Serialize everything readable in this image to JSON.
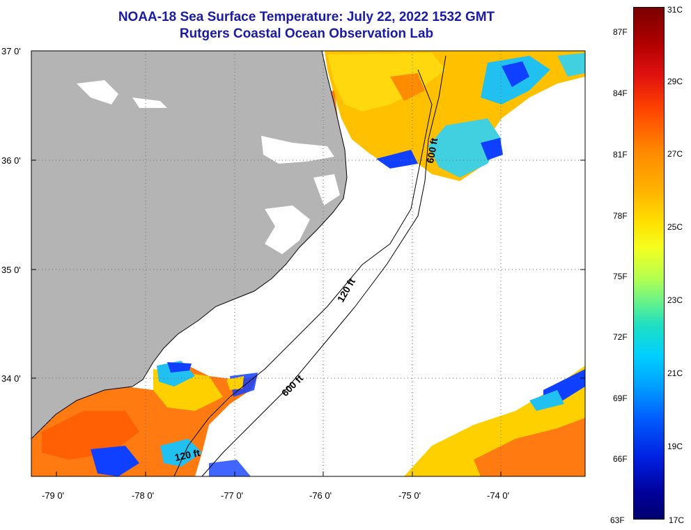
{
  "title": {
    "line1": "NOAA-18 Sea Surface Temperature:  July 22, 2022 1532 GMT",
    "line2": "Rutgers Coastal Ocean Observation Lab"
  },
  "map": {
    "lat_labels": [
      "37 0'",
      "36 0'",
      "35 0'",
      "34 0'"
    ],
    "lon_labels": [
      "-79 0'",
      "-78 0'",
      "-77 0'",
      "-76 0'",
      "-75 0'",
      "-74 0'"
    ],
    "isobaths": [
      "120 ft",
      "600 ft",
      "600 ft",
      "120 ft"
    ]
  },
  "colorbar": {
    "fahrenheit": [
      "87F",
      "84F",
      "81F",
      "78F",
      "75F",
      "72F",
      "69F",
      "66F",
      "63F"
    ],
    "celsius": [
      "31C",
      "29C",
      "27C",
      "25C",
      "23C",
      "21C",
      "19C",
      "17C"
    ]
  },
  "colors": {
    "land": "#b4b4b4",
    "ocean_clouds": "#ffffff",
    "title": "#1a1aa8",
    "warm": "#ff7a10",
    "mid": "#ffd000",
    "cool": "#20c0f0",
    "cold": "#1040ff"
  }
}
